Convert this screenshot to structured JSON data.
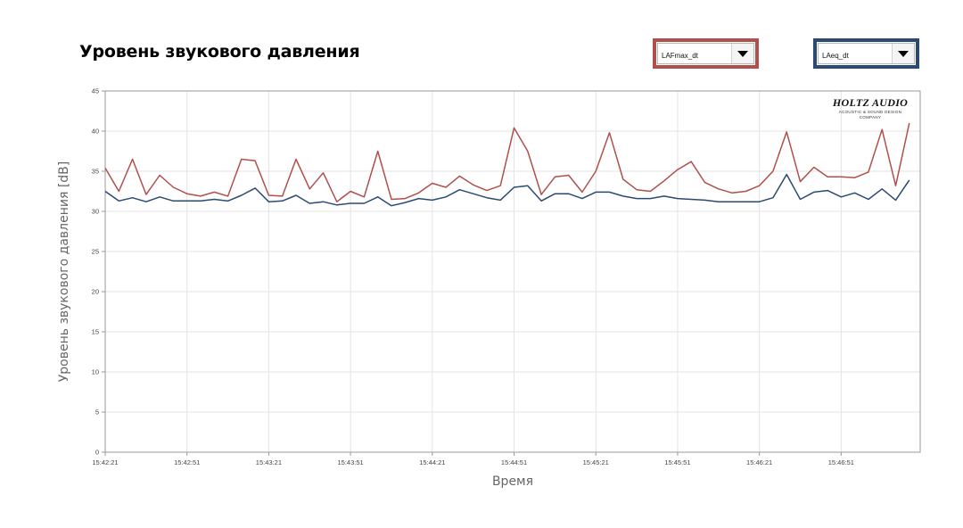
{
  "header": {
    "title": "Уровень звукового давления"
  },
  "selectors": [
    {
      "value": "LAFmax_dt",
      "color": "#b0504c"
    },
    {
      "value": "LAeq_dt",
      "color": "#2a4a73"
    }
  ],
  "logo": {
    "main": "HOLTZ AUDIO",
    "sub1": "ACOUSTIC & SOUND DESIGN",
    "sub2": "COMPANY"
  },
  "chart_data": {
    "type": "line",
    "title": "",
    "xlabel": "Время",
    "ylabel": "Уровень звукового давления [dB]",
    "ylim": [
      0,
      45
    ],
    "yticks": [
      0,
      5,
      10,
      15,
      20,
      25,
      30,
      35,
      40,
      45
    ],
    "xlim": [
      "15:42:21",
      "15:47:20"
    ],
    "xticks": [
      "15:42:21",
      "15:42:51",
      "15:43:21",
      "15:43:51",
      "15:44:21",
      "15:44:51",
      "15:45:21",
      "15:45:51",
      "15:46:21",
      "15:46:51"
    ],
    "grid": true,
    "x": [
      "15:42:21",
      "15:42:26",
      "15:42:31",
      "15:42:36",
      "15:42:41",
      "15:42:46",
      "15:42:51",
      "15:42:56",
      "15:43:01",
      "15:43:06",
      "15:43:11",
      "15:43:16",
      "15:43:21",
      "15:43:26",
      "15:43:31",
      "15:43:36",
      "15:43:41",
      "15:43:46",
      "15:43:51",
      "15:43:56",
      "15:44:01",
      "15:44:06",
      "15:44:11",
      "15:44:16",
      "15:44:21",
      "15:44:26",
      "15:44:31",
      "15:44:36",
      "15:44:41",
      "15:44:46",
      "15:44:51",
      "15:44:56",
      "15:45:01",
      "15:45:06",
      "15:45:11",
      "15:45:16",
      "15:45:21",
      "15:45:26",
      "15:45:31",
      "15:45:36",
      "15:45:41",
      "15:45:46",
      "15:45:51",
      "15:45:56",
      "15:46:01",
      "15:46:06",
      "15:46:11",
      "15:46:16",
      "15:46:21",
      "15:46:26",
      "15:46:31",
      "15:46:36",
      "15:46:41",
      "15:46:46",
      "15:46:51",
      "15:46:56",
      "15:47:01",
      "15:47:06",
      "15:47:11",
      "15:47:16"
    ],
    "series": [
      {
        "name": "LAFmax_dt",
        "color": "#b0504c",
        "values": [
          35.4,
          32.5,
          36.5,
          32.1,
          34.5,
          33.0,
          32.2,
          31.9,
          32.4,
          31.9,
          36.5,
          36.3,
          32.0,
          31.9,
          36.5,
          32.8,
          34.8,
          31.2,
          32.5,
          31.8,
          37.5,
          31.5,
          31.6,
          32.3,
          33.5,
          33.0,
          34.4,
          33.3,
          32.6,
          33.2,
          40.4,
          37.5,
          32.1,
          34.3,
          34.5,
          32.4,
          35.0,
          39.8,
          34.0,
          32.7,
          32.5,
          33.8,
          35.2,
          36.2,
          33.6,
          32.8,
          32.3,
          32.5,
          33.2,
          35.0,
          39.9,
          33.7,
          35.5,
          34.3,
          34.3,
          34.2,
          34.9,
          40.2,
          33.2,
          41.0
        ]
      },
      {
        "name": "LAeq_dt",
        "color": "#2a4a73",
        "values": [
          32.5,
          31.3,
          31.7,
          31.2,
          31.8,
          31.3,
          31.3,
          31.3,
          31.5,
          31.3,
          32.0,
          32.9,
          31.2,
          31.3,
          32.0,
          31.0,
          31.2,
          30.8,
          31.0,
          31.0,
          31.8,
          30.7,
          31.1,
          31.6,
          31.4,
          31.8,
          32.7,
          32.2,
          31.7,
          31.4,
          33.0,
          33.2,
          31.3,
          32.2,
          32.2,
          31.6,
          32.4,
          32.4,
          31.9,
          31.6,
          31.6,
          31.9,
          31.6,
          31.5,
          31.4,
          31.2,
          31.2,
          31.2,
          31.2,
          31.7,
          34.6,
          31.5,
          32.4,
          32.6,
          31.8,
          32.3,
          31.5,
          32.8,
          31.4,
          33.9
        ]
      }
    ]
  }
}
